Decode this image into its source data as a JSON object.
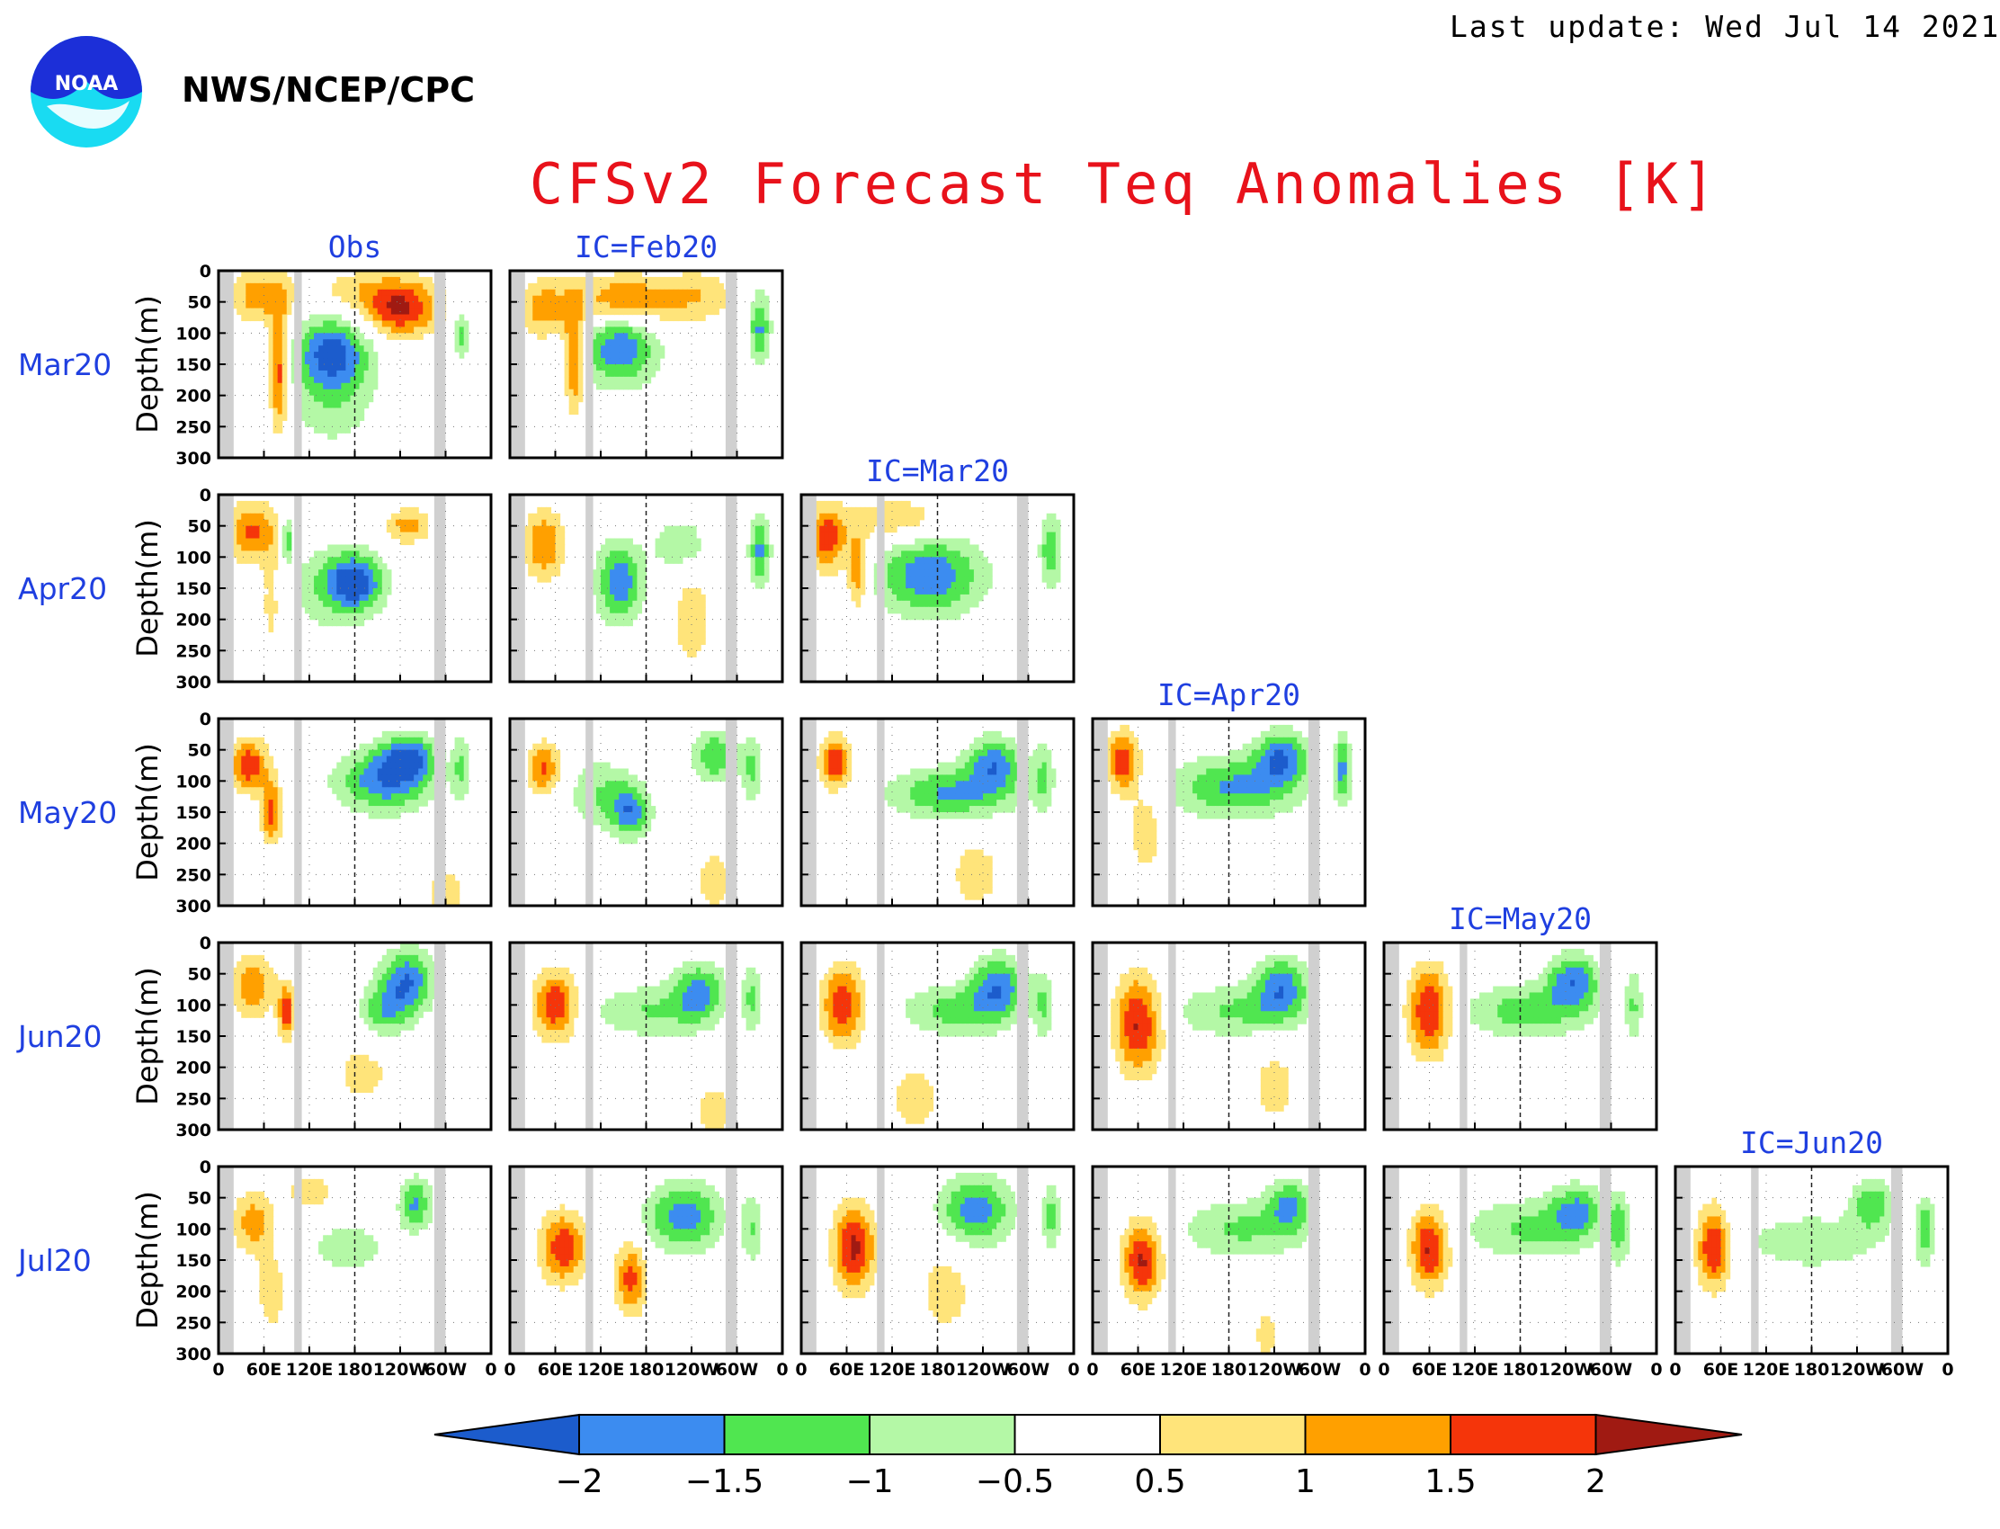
{
  "header": {
    "last_update": "Last update: Wed Jul 14 2021",
    "agency": "NWS/NCEP/CPC",
    "logo_text": "NOAA"
  },
  "colors": {
    "title": "#e8121b",
    "labels": "#1f3fe0",
    "land_mask": "#d0d0d0"
  },
  "chart_data": {
    "type": "heatmap",
    "title": "CFSv2 Forecast Teq Anomalies [K]",
    "column_titles": [
      "Obs",
      "IC=Feb20",
      "IC=Mar20",
      "IC=Apr20",
      "IC=May20",
      "IC=Jun20"
    ],
    "row_labels": [
      "Mar20",
      "Apr20",
      "May20",
      "Jun20",
      "Jul20"
    ],
    "ylabel": "Depth(m)",
    "y_ticks": [
      "0",
      "50",
      "100",
      "150",
      "200",
      "250",
      "300"
    ],
    "ylim": [
      300,
      0
    ],
    "x_ticks": [
      "0",
      "60E",
      "120E",
      "180",
      "120W",
      "60W",
      "0"
    ],
    "xlim": [
      0,
      360
    ],
    "dashed_line_longitude": 180,
    "land_bands_lon": [
      [
        0,
        20
      ],
      [
        100,
        110
      ],
      [
        285,
        300
      ]
    ],
    "colorbar": {
      "ticks": [
        "−2",
        "−1.5",
        "−1",
        "−0.5",
        "0.5",
        "1",
        "1.5",
        "2"
      ],
      "colors": [
        "#1c5ccc",
        "#3c8cf0",
        "#50e650",
        "#b4f8a6",
        "#ffffff",
        "#ffe47a",
        "#ffa000",
        "#f5350a",
        "#a01a12"
      ],
      "levels": [
        -2,
        -1.5,
        -1,
        -0.5,
        0.5,
        1,
        1.5,
        2
      ]
    },
    "panels": [
      {
        "row": "Mar20",
        "col": "Obs",
        "features": [
          {
            "lon": 240,
            "dep": 65,
            "a": 1.9,
            "slon": 35,
            "sdep": 30
          },
          {
            "lon": 55,
            "dep": 40,
            "a": 1.3,
            "slon": 30,
            "sdep": 30
          },
          {
            "lon": 80,
            "dep": 160,
            "a": 1.9,
            "slon": 9,
            "sdep": 70
          },
          {
            "lon": 150,
            "dep": 130,
            "a": -1.9,
            "slon": 35,
            "sdep": 40
          },
          {
            "lon": 150,
            "dep": 200,
            "a": -0.9,
            "slon": 40,
            "sdep": 60
          },
          {
            "lon": 320,
            "dep": 100,
            "a": -1.2,
            "slon": 8,
            "sdep": 30
          },
          {
            "lon": 200,
            "dep": 30,
            "a": 0.8,
            "slon": 60,
            "sdep": 25
          }
        ]
      },
      {
        "row": "Mar20",
        "col": "IC=Feb20",
        "features": [
          {
            "lon": 150,
            "dep": 50,
            "a": 1.8,
            "slon": 45,
            "sdep": 30
          },
          {
            "lon": 85,
            "dep": 140,
            "a": 1.8,
            "slon": 9,
            "sdep": 60
          },
          {
            "lon": 45,
            "dep": 60,
            "a": 1.2,
            "slon": 25,
            "sdep": 35
          },
          {
            "lon": 145,
            "dep": 120,
            "a": -2.0,
            "slon": 35,
            "sdep": 45
          },
          {
            "lon": 330,
            "dep": 90,
            "a": -1.6,
            "slon": 10,
            "sdep": 40
          },
          {
            "lon": 250,
            "dep": 40,
            "a": 0.9,
            "slon": 35,
            "sdep": 30
          }
        ]
      },
      {
        "row": "Apr20",
        "col": "Obs",
        "features": [
          {
            "lon": 45,
            "dep": 60,
            "a": 1.6,
            "slon": 25,
            "sdep": 35
          },
          {
            "lon": 250,
            "dep": 50,
            "a": 1.3,
            "slon": 20,
            "sdep": 20
          },
          {
            "lon": 180,
            "dep": 140,
            "a": -2.0,
            "slon": 25,
            "sdep": 30
          },
          {
            "lon": 150,
            "dep": 150,
            "a": -0.9,
            "slon": 45,
            "sdep": 50
          },
          {
            "lon": 90,
            "dep": 70,
            "a": -1.5,
            "slon": 5,
            "sdep": 25
          },
          {
            "lon": 70,
            "dep": 170,
            "a": 0.8,
            "slon": 10,
            "sdep": 60
          }
        ]
      },
      {
        "row": "Apr20",
        "col": "IC=Feb20",
        "features": [
          {
            "lon": 45,
            "dep": 80,
            "a": 1.5,
            "slon": 20,
            "sdep": 40
          },
          {
            "lon": 145,
            "dep": 140,
            "a": -1.9,
            "slon": 22,
            "sdep": 45
          },
          {
            "lon": 225,
            "dep": 80,
            "a": -1.0,
            "slon": 25,
            "sdep": 30
          },
          {
            "lon": 330,
            "dep": 90,
            "a": -1.6,
            "slon": 10,
            "sdep": 40
          },
          {
            "lon": 240,
            "dep": 200,
            "a": 0.8,
            "slon": 20,
            "sdep": 60
          }
        ]
      },
      {
        "row": "Apr20",
        "col": "IC=Mar20",
        "features": [
          {
            "lon": 35,
            "dep": 70,
            "a": 1.8,
            "slon": 18,
            "sdep": 40
          },
          {
            "lon": 75,
            "dep": 120,
            "a": 1.5,
            "slon": 10,
            "sdep": 45
          },
          {
            "lon": 170,
            "dep": 130,
            "a": -1.9,
            "slon": 50,
            "sdep": 45
          },
          {
            "lon": 330,
            "dep": 90,
            "a": -1.5,
            "slon": 10,
            "sdep": 40
          },
          {
            "lon": 130,
            "dep": 40,
            "a": 1.0,
            "slon": 40,
            "sdep": 25
          }
        ]
      },
      {
        "row": "May20",
        "col": "Obs",
        "features": [
          {
            "lon": 40,
            "dep": 75,
            "a": 1.9,
            "slon": 18,
            "sdep": 30
          },
          {
            "lon": 70,
            "dep": 150,
            "a": 1.7,
            "slon": 10,
            "sdep": 35
          },
          {
            "lon": 220,
            "dep": 100,
            "a": -1.9,
            "slon": 45,
            "sdep": 35
          },
          {
            "lon": 250,
            "dep": 60,
            "a": -1.8,
            "slon": 25,
            "sdep": 25
          },
          {
            "lon": 320,
            "dep": 80,
            "a": -1.0,
            "slon": 8,
            "sdep": 40
          },
          {
            "lon": 300,
            "dep": 280,
            "a": 0.8,
            "slon": 20,
            "sdep": 30
          }
        ]
      },
      {
        "row": "May20",
        "col": "IC=Feb20",
        "features": [
          {
            "lon": 45,
            "dep": 80,
            "a": 1.6,
            "slon": 15,
            "sdep": 30
          },
          {
            "lon": 160,
            "dep": 150,
            "a": -1.7,
            "slon": 18,
            "sdep": 30
          },
          {
            "lon": 120,
            "dep": 120,
            "a": -1.0,
            "slon": 30,
            "sdep": 40
          },
          {
            "lon": 270,
            "dep": 60,
            "a": -1.5,
            "slon": 20,
            "sdep": 30
          },
          {
            "lon": 320,
            "dep": 80,
            "a": -1.1,
            "slon": 10,
            "sdep": 40
          },
          {
            "lon": 270,
            "dep": 260,
            "a": 0.8,
            "slon": 20,
            "sdep": 40
          }
        ]
      },
      {
        "row": "May20",
        "col": "IC=Mar20",
        "features": [
          {
            "lon": 45,
            "dep": 70,
            "a": 1.9,
            "slon": 15,
            "sdep": 30
          },
          {
            "lon": 200,
            "dep": 120,
            "a": -1.6,
            "slon": 60,
            "sdep": 30
          },
          {
            "lon": 255,
            "dep": 70,
            "a": -1.7,
            "slon": 25,
            "sdep": 30
          },
          {
            "lon": 320,
            "dep": 90,
            "a": -1.0,
            "slon": 10,
            "sdep": 40
          },
          {
            "lon": 230,
            "dep": 250,
            "a": 0.7,
            "slon": 30,
            "sdep": 50
          }
        ]
      },
      {
        "row": "May20",
        "col": "IC=Apr20",
        "features": [
          {
            "lon": 40,
            "dep": 70,
            "a": 1.9,
            "slon": 15,
            "sdep": 35
          },
          {
            "lon": 190,
            "dep": 110,
            "a": -1.6,
            "slon": 60,
            "sdep": 35
          },
          {
            "lon": 250,
            "dep": 60,
            "a": -1.8,
            "slon": 25,
            "sdep": 30
          },
          {
            "lon": 330,
            "dep": 80,
            "a": -1.6,
            "slon": 8,
            "sdep": 40
          },
          {
            "lon": 70,
            "dep": 180,
            "a": 0.9,
            "slon": 15,
            "sdep": 50
          }
        ]
      },
      {
        "row": "Jun20",
        "col": "Obs",
        "features": [
          {
            "lon": 45,
            "dep": 70,
            "a": 1.5,
            "slon": 20,
            "sdep": 35
          },
          {
            "lon": 90,
            "dep": 110,
            "a": 1.8,
            "slon": 8,
            "sdep": 30
          },
          {
            "lon": 250,
            "dep": 60,
            "a": -1.9,
            "slon": 25,
            "sdep": 35
          },
          {
            "lon": 220,
            "dep": 110,
            "a": -1.3,
            "slon": 25,
            "sdep": 30
          },
          {
            "lon": 190,
            "dep": 210,
            "a": 0.7,
            "slon": 30,
            "sdep": 40
          }
        ]
      },
      {
        "row": "Jun20",
        "col": "IC=Feb20",
        "features": [
          {
            "lon": 60,
            "dep": 100,
            "a": 1.9,
            "slon": 20,
            "sdep": 40
          },
          {
            "lon": 250,
            "dep": 80,
            "a": -1.6,
            "slon": 25,
            "sdep": 35
          },
          {
            "lon": 180,
            "dep": 110,
            "a": -1.0,
            "slon": 50,
            "sdep": 30
          },
          {
            "lon": 320,
            "dep": 90,
            "a": -1.1,
            "slon": 10,
            "sdep": 40
          },
          {
            "lon": 270,
            "dep": 270,
            "a": 0.7,
            "slon": 25,
            "sdep": 35
          }
        ]
      },
      {
        "row": "Jun20",
        "col": "IC=Mar20",
        "features": [
          {
            "lon": 55,
            "dep": 100,
            "a": 1.9,
            "slon": 20,
            "sdep": 45
          },
          {
            "lon": 260,
            "dep": 70,
            "a": -1.8,
            "slon": 25,
            "sdep": 35
          },
          {
            "lon": 200,
            "dep": 110,
            "a": -1.2,
            "slon": 50,
            "sdep": 30
          },
          {
            "lon": 320,
            "dep": 100,
            "a": -1.0,
            "slon": 10,
            "sdep": 40
          },
          {
            "lon": 150,
            "dep": 250,
            "a": 0.7,
            "slon": 30,
            "sdep": 50
          }
        ]
      },
      {
        "row": "Jun20",
        "col": "IC=Apr20",
        "features": [
          {
            "lon": 60,
            "dep": 130,
            "a": 2.1,
            "slon": 22,
            "sdep": 55
          },
          {
            "lon": 250,
            "dep": 70,
            "a": -1.7,
            "slon": 25,
            "sdep": 35
          },
          {
            "lon": 190,
            "dep": 110,
            "a": -1.1,
            "slon": 60,
            "sdep": 30
          },
          {
            "lon": 240,
            "dep": 230,
            "a": 0.7,
            "slon": 25,
            "sdep": 50
          }
        ]
      },
      {
        "row": "Jun20",
        "col": "IC=May20",
        "features": [
          {
            "lon": 60,
            "dep": 110,
            "a": 2.1,
            "slon": 20,
            "sdep": 50
          },
          {
            "lon": 250,
            "dep": 60,
            "a": -1.8,
            "slon": 25,
            "sdep": 30
          },
          {
            "lon": 190,
            "dep": 110,
            "a": -1.3,
            "slon": 60,
            "sdep": 30
          },
          {
            "lon": 330,
            "dep": 100,
            "a": -1.0,
            "slon": 8,
            "sdep": 40
          }
        ]
      },
      {
        "row": "Jul20",
        "col": "Obs",
        "features": [
          {
            "lon": 45,
            "dep": 90,
            "a": 1.3,
            "slon": 20,
            "sdep": 35
          },
          {
            "lon": 260,
            "dep": 60,
            "a": -1.6,
            "slon": 15,
            "sdep": 30
          },
          {
            "lon": 170,
            "dep": 130,
            "a": -0.8,
            "slon": 40,
            "sdep": 30
          },
          {
            "lon": 70,
            "dep": 200,
            "a": 0.8,
            "slon": 15,
            "sdep": 50
          },
          {
            "lon": 120,
            "dep": 40,
            "a": 0.8,
            "slon": 25,
            "sdep": 25
          }
        ]
      },
      {
        "row": "Jul20",
        "col": "IC=Feb20",
        "features": [
          {
            "lon": 70,
            "dep": 130,
            "a": 1.9,
            "slon": 22,
            "sdep": 40
          },
          {
            "lon": 160,
            "dep": 180,
            "a": 1.7,
            "slon": 15,
            "sdep": 40
          },
          {
            "lon": 230,
            "dep": 80,
            "a": -1.8,
            "slon": 35,
            "sdep": 40
          },
          {
            "lon": 320,
            "dep": 100,
            "a": -1.0,
            "slon": 10,
            "sdep": 40
          }
        ]
      },
      {
        "row": "Jul20",
        "col": "IC=Mar20",
        "features": [
          {
            "lon": 70,
            "dep": 130,
            "a": 2.1,
            "slon": 20,
            "sdep": 50
          },
          {
            "lon": 230,
            "dep": 70,
            "a": -1.8,
            "slon": 35,
            "sdep": 40
          },
          {
            "lon": 330,
            "dep": 80,
            "a": -1.2,
            "slon": 8,
            "sdep": 40
          },
          {
            "lon": 190,
            "dep": 200,
            "a": 0.7,
            "slon": 30,
            "sdep": 60
          }
        ]
      },
      {
        "row": "Jul20",
        "col": "IC=Apr20",
        "features": [
          {
            "lon": 65,
            "dep": 150,
            "a": 2.1,
            "slon": 18,
            "sdep": 45
          },
          {
            "lon": 200,
            "dep": 100,
            "a": -1.1,
            "slon": 60,
            "sdep": 35
          },
          {
            "lon": 260,
            "dep": 60,
            "a": -1.4,
            "slon": 20,
            "sdep": 30
          },
          {
            "lon": 230,
            "dep": 270,
            "a": 0.7,
            "slon": 15,
            "sdep": 35
          }
        ]
      },
      {
        "row": "Jul20",
        "col": "IC=May20",
        "features": [
          {
            "lon": 60,
            "dep": 130,
            "a": 2.1,
            "slon": 18,
            "sdep": 45
          },
          {
            "lon": 190,
            "dep": 100,
            "a": -1.1,
            "slon": 60,
            "sdep": 35
          },
          {
            "lon": 255,
            "dep": 70,
            "a": -1.4,
            "slon": 25,
            "sdep": 30
          },
          {
            "lon": 310,
            "dep": 100,
            "a": -1.2,
            "slon": 10,
            "sdep": 40
          }
        ]
      },
      {
        "row": "Jul20",
        "col": "IC=Jun20",
        "features": [
          {
            "lon": 50,
            "dep": 130,
            "a": 2.1,
            "slon": 15,
            "sdep": 45
          },
          {
            "lon": 180,
            "dep": 120,
            "a": -1.0,
            "slon": 60,
            "sdep": 30
          },
          {
            "lon": 260,
            "dep": 60,
            "a": -1.4,
            "slon": 20,
            "sdep": 30
          },
          {
            "lon": 330,
            "dep": 100,
            "a": -1.3,
            "slon": 10,
            "sdep": 40
          }
        ]
      }
    ]
  }
}
